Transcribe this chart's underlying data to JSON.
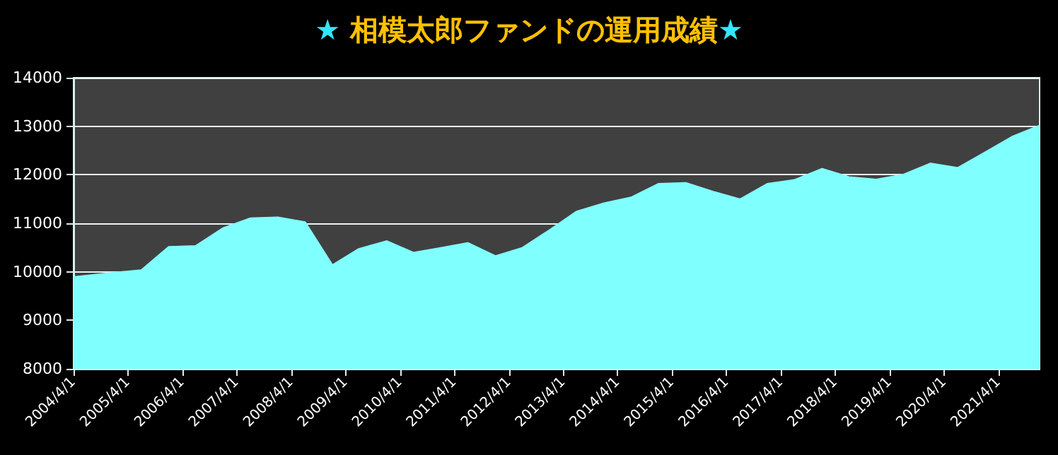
{
  "chart_data": {
    "type": "area",
    "title": "★ 相模太郎ファンドの運用成績★",
    "x": [
      "2004-04",
      "2005-01",
      "2005-07",
      "2006-01",
      "2006-07",
      "2007-01",
      "2007-07",
      "2008-01",
      "2008-07",
      "2009-01",
      "2009-07",
      "2010-01",
      "2010-07",
      "2011-01",
      "2011-07",
      "2012-01",
      "2012-07",
      "2013-01",
      "2013-07",
      "2014-01",
      "2014-07",
      "2015-01",
      "2015-07",
      "2016-01",
      "2016-07",
      "2017-01",
      "2017-07",
      "2018-01",
      "2018-07",
      "2019-01",
      "2019-07",
      "2020-01",
      "2020-07",
      "2021-01",
      "2021-07",
      "2022-01"
    ],
    "series": [
      {
        "color": "#80ffff",
        "values": [
          9880,
          9970,
          10020,
          10500,
          10520,
          10890,
          11090,
          11110,
          11010,
          10120,
          10460,
          10620,
          10380,
          10480,
          10580,
          10310,
          10480,
          10850,
          11230,
          11400,
          11520,
          11800,
          11820,
          11640,
          11480,
          11800,
          11880,
          12110,
          11940,
          11890,
          11990,
          12220,
          12130,
          12450,
          12770,
          13000
        ]
      }
    ],
    "xlim": [
      "2004-04-01",
      "2022-01-01"
    ],
    "xticks": [
      {
        "value": "2004-04-01",
        "label": "2004/4/1"
      },
      {
        "value": "2005-04-01",
        "label": "2005/4/1"
      },
      {
        "value": "2006-04-01",
        "label": "2006/4/1"
      },
      {
        "value": "2007-04-01",
        "label": "2007/4/1"
      },
      {
        "value": "2008-04-01",
        "label": "2008/4/1"
      },
      {
        "value": "2009-04-01",
        "label": "2009/4/1"
      },
      {
        "value": "2010-04-01",
        "label": "2010/4/1"
      },
      {
        "value": "2011-04-01",
        "label": "2011/4/1"
      },
      {
        "value": "2012-04-01",
        "label": "2012/4/1"
      },
      {
        "value": "2013-04-01",
        "label": "2013/4/1"
      },
      {
        "value": "2014-04-01",
        "label": "2014/4/1"
      },
      {
        "value": "2015-04-01",
        "label": "2015/4/1"
      },
      {
        "value": "2016-04-01",
        "label": "2016/4/1"
      },
      {
        "value": "2017-04-01",
        "label": "2017/4/1"
      },
      {
        "value": "2018-04-01",
        "label": "2018/4/1"
      },
      {
        "value": "2019-04-01",
        "label": "2019/4/1"
      },
      {
        "value": "2020-04-01",
        "label": "2020/4/1"
      },
      {
        "value": "2021-04-01",
        "label": "2021/4/1"
      }
    ],
    "ylim": [
      8000,
      14000
    ],
    "yticks": [
      8000,
      9000,
      10000,
      11000,
      12000,
      13000,
      14000
    ],
    "grid": "y",
    "marker": "none"
  }
}
